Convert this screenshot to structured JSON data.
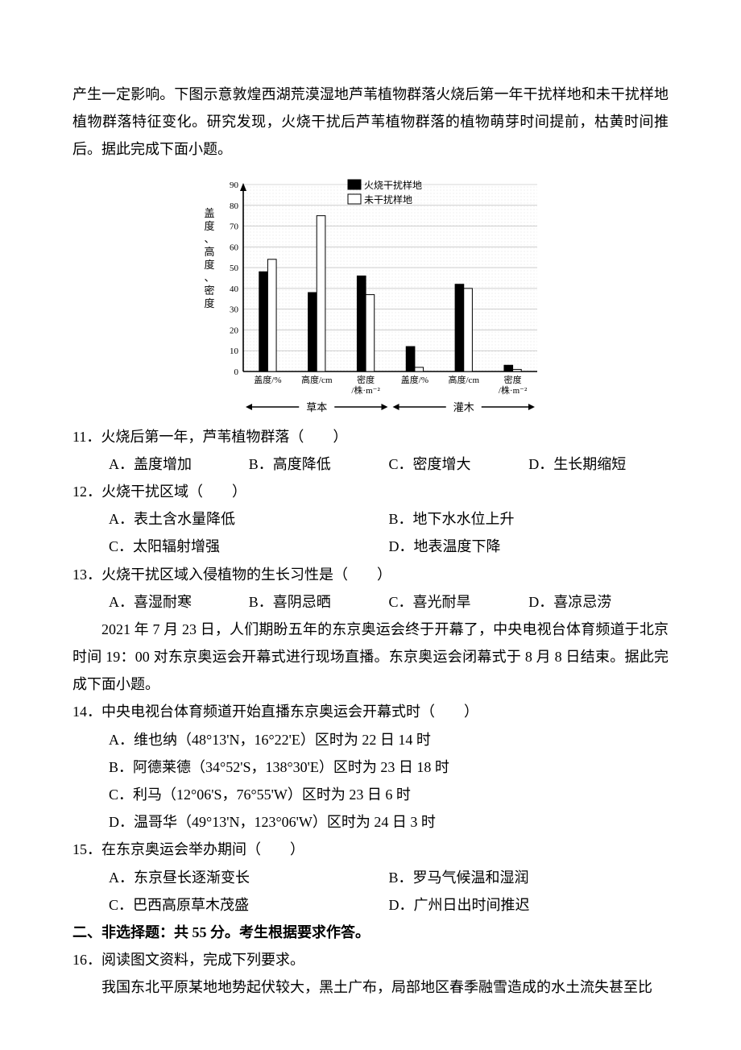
{
  "intro": {
    "p1": "产生一定影响。下图示意敦煌西湖荒漠湿地芦苇植物群落火烧后第一年干扰样地和未干扰样地植物群落特征变化。研究发现，火烧干扰后芦苇植物群落的植物萌芽时间提前，枯黄时间推后。据此完成下面小题。"
  },
  "chart": {
    "type": "bar",
    "background_color": "#ffffff",
    "grid_color": "#b0b0b0",
    "axis_color": "#000000",
    "bar_border": "#000000",
    "y_axis_label": "盖度、高度、密度",
    "legend": [
      {
        "label": "火烧干扰样地",
        "fill": "#000000"
      },
      {
        "label": "未干扰样地",
        "fill": "#ffffff"
      }
    ],
    "ylim": [
      0,
      90
    ],
    "ytick_step": 10,
    "label_fontsize": 12,
    "tick_fontsize": 11,
    "bar_width": 0.35,
    "groups": [
      {
        "section": "草本",
        "metrics": [
          {
            "label": "盖度/%",
            "fire": 48,
            "no": 54
          },
          {
            "label": "高度/cm",
            "fire": 38,
            "no": 75
          },
          {
            "label": "密度\n/株·m⁻²",
            "fire": 46,
            "no": 37
          }
        ]
      },
      {
        "section": "灌木",
        "metrics": [
          {
            "label": "盖度/%",
            "fire": 12,
            "no": 2
          },
          {
            "label": "高度/cm",
            "fire": 42,
            "no": 40
          },
          {
            "label": "密度\n/株·m⁻²",
            "fire": 3,
            "no": 1
          }
        ]
      }
    ]
  },
  "q11": {
    "stem": "11．火烧后第一年，芦苇植物群落（　　）",
    "A": "A．盖度增加",
    "B": "B．高度降低",
    "C": "C．密度增大",
    "D": "D．生长期缩短"
  },
  "q12": {
    "stem": "12．火烧干扰区域（　　）",
    "A": "A．表土含水量降低",
    "B": "B．地下水水位上升",
    "C": "C．太阳辐射增强",
    "D": "D．地表温度下降"
  },
  "q13": {
    "stem": "13．火烧干扰区域入侵植物的生长习性是（　　）",
    "A": "A．喜湿耐寒",
    "B": "B．喜阴忌晒",
    "C": "C．喜光耐旱",
    "D": "D．喜凉忌涝"
  },
  "passage2": {
    "p1": "2021 年 7 月 23 日，人们期盼五年的东京奥运会终于开幕了，中央电视台体育频道于北京时间 19：00 对东京奥运会开幕式进行现场直播。东京奥运会闭幕式于 8 月 8 日结束。据此完成下面小题。"
  },
  "q14": {
    "stem": "14．中央电视台体育频道开始直播东京奥运会开幕式时（　　）",
    "A": "A．维也纳（48°13'N，16°22'E）区时为 22 日 14 时",
    "B": "B．阿德莱德（34°52'S，138°30'E）区时为 23 日 18 时",
    "C": "C．利马（12°06'S，76°55'W）区时为 23 日 6 时",
    "D": "D．温哥华（49°13'N，123°06'W）区时为 24 日 3 时"
  },
  "q15": {
    "stem": "15．在东京奥运会举办期间（　　）",
    "A": "A．东京昼长逐渐变长",
    "B": "B．罗马气候温和湿润",
    "C": "C．巴西高原草木茂盛",
    "D": "D．广州日出时间推迟"
  },
  "section2": {
    "heading": "二、非选择题：共 55 分。考生根据要求作答。",
    "q16_stem": "16．阅读图文资料，完成下列要求。",
    "q16_body": "我国东北平原某地地势起伏较大，黑土广布，局部地区春季融雪造成的水土流失甚至比"
  }
}
